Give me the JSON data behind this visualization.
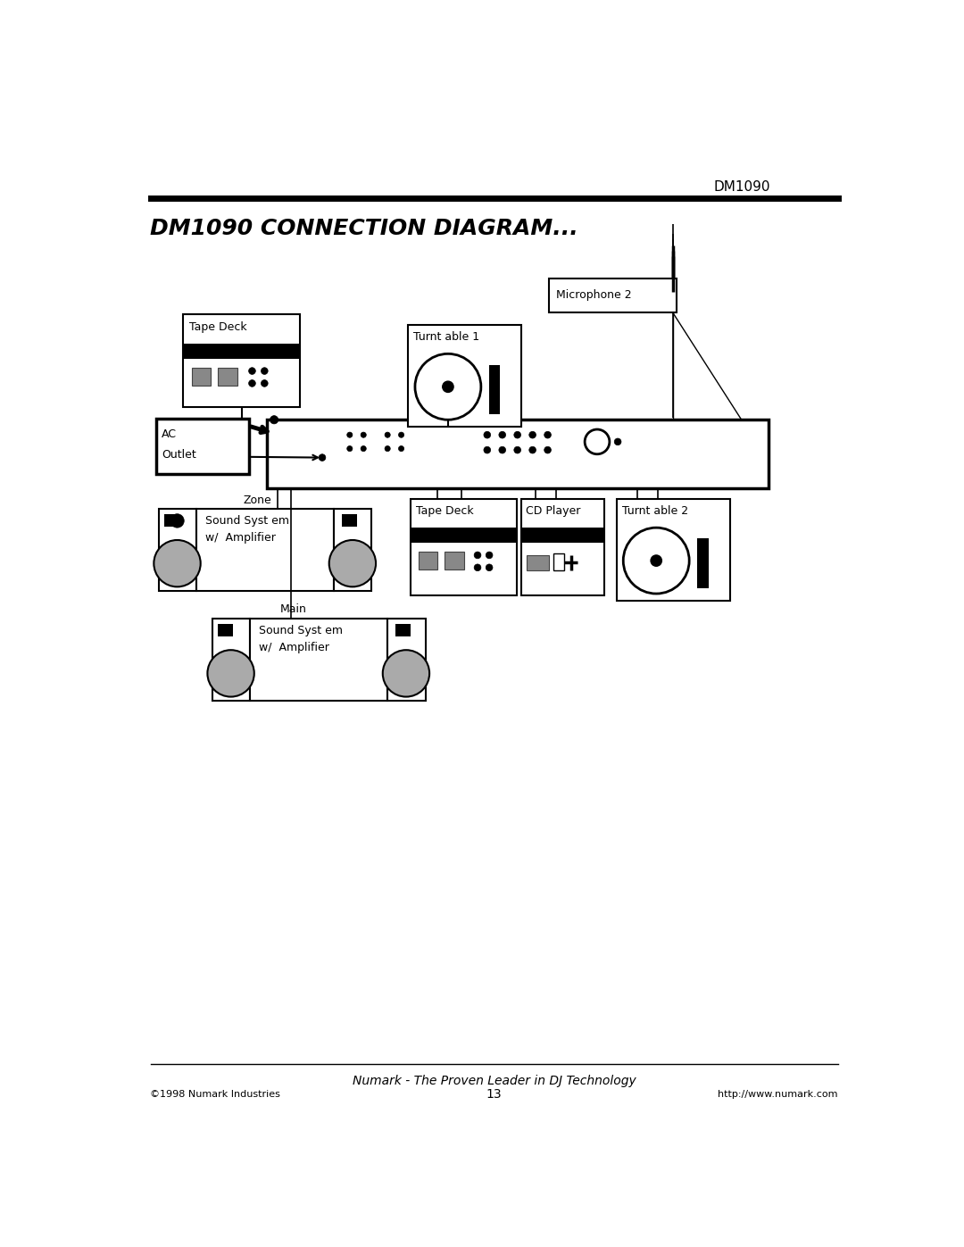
{
  "title_header": "DM1090",
  "title_main": "DM1090 CONNECTION DIAGRAM...",
  "bg_color": "#ffffff",
  "footer_left": "©1998 Numark Industries",
  "footer_center": "13",
  "footer_right": "http://www.numark.com",
  "footer_italic": "Numark - The Proven Leader in DJ Technology"
}
